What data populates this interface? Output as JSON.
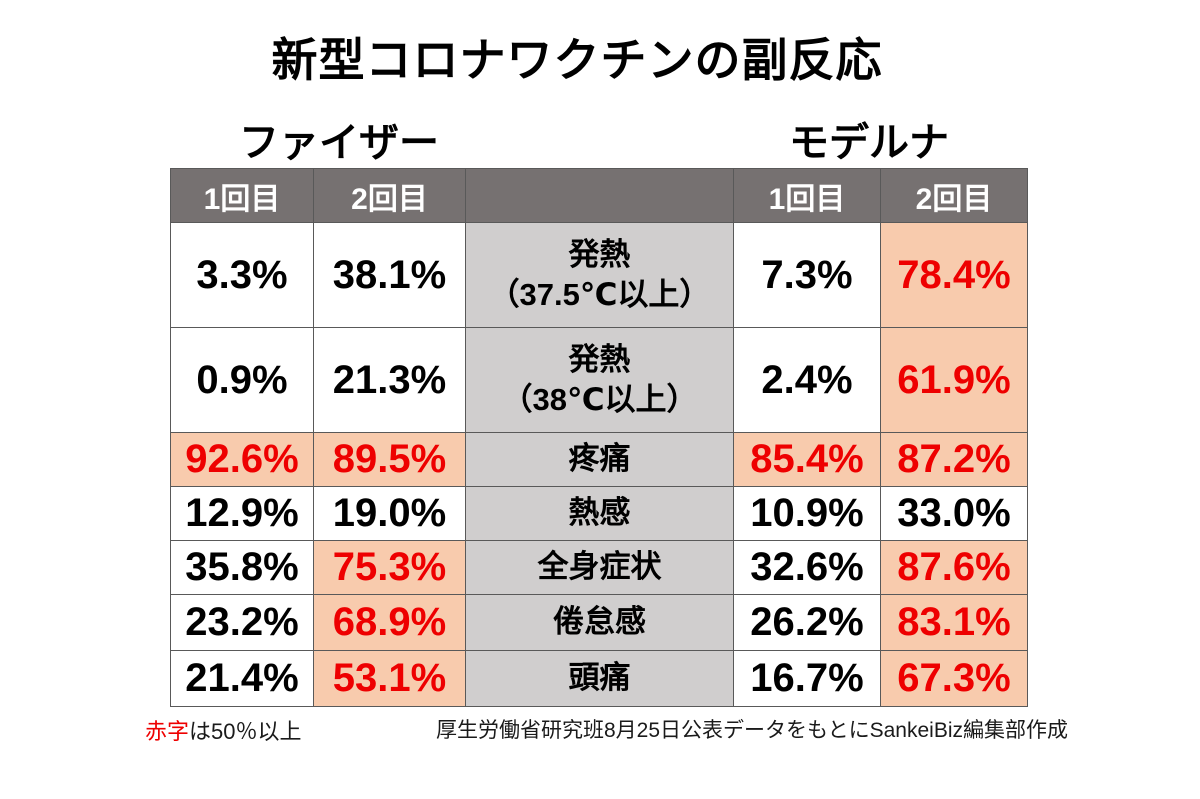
{
  "title": "新型コロナワクチンの副反応",
  "vaccine_groups": {
    "pfizer": "ファイザー",
    "moderna": "モデルナ"
  },
  "table": {
    "column_headers": {
      "pfizer_dose1": "1回目",
      "pfizer_dose2": "2回目",
      "symptom": "",
      "moderna_dose1": "1回目",
      "moderna_dose2": "2回目"
    },
    "rows": [
      {
        "symptom": "発熱\n（37.5℃以上）",
        "pfizer_dose1": {
          "value": "3.3%",
          "highlight": false
        },
        "pfizer_dose2": {
          "value": "38.1%",
          "highlight": false
        },
        "moderna_dose1": {
          "value": "7.3%",
          "highlight": false
        },
        "moderna_dose2": {
          "value": "78.4%",
          "highlight": true
        }
      },
      {
        "symptom": "発熱\n（38℃以上）",
        "pfizer_dose1": {
          "value": "0.9%",
          "highlight": false
        },
        "pfizer_dose2": {
          "value": "21.3%",
          "highlight": false
        },
        "moderna_dose1": {
          "value": "2.4%",
          "highlight": false
        },
        "moderna_dose2": {
          "value": "61.9%",
          "highlight": true
        }
      },
      {
        "symptom": "疼痛",
        "pfizer_dose1": {
          "value": "92.6%",
          "highlight": true
        },
        "pfizer_dose2": {
          "value": "89.5%",
          "highlight": true
        },
        "moderna_dose1": {
          "value": "85.4%",
          "highlight": true
        },
        "moderna_dose2": {
          "value": "87.2%",
          "highlight": true
        }
      },
      {
        "symptom": "熱感",
        "pfizer_dose1": {
          "value": "12.9%",
          "highlight": false
        },
        "pfizer_dose2": {
          "value": "19.0%",
          "highlight": false
        },
        "moderna_dose1": {
          "value": "10.9%",
          "highlight": false
        },
        "moderna_dose2": {
          "value": "33.0%",
          "highlight": false
        }
      },
      {
        "symptom": "全身症状",
        "pfizer_dose1": {
          "value": "35.8%",
          "highlight": false
        },
        "pfizer_dose2": {
          "value": "75.3%",
          "highlight": true
        },
        "moderna_dose1": {
          "value": "32.6%",
          "highlight": false
        },
        "moderna_dose2": {
          "value": "87.6%",
          "highlight": true
        }
      },
      {
        "symptom": "倦怠感",
        "pfizer_dose1": {
          "value": "23.2%",
          "highlight": false
        },
        "pfizer_dose2": {
          "value": "68.9%",
          "highlight": true
        },
        "moderna_dose1": {
          "value": "26.2%",
          "highlight": false
        },
        "moderna_dose2": {
          "value": "83.1%",
          "highlight": true
        }
      },
      {
        "symptom": "頭痛",
        "pfizer_dose1": {
          "value": "21.4%",
          "highlight": false
        },
        "pfizer_dose2": {
          "value": "53.1%",
          "highlight": true
        },
        "moderna_dose1": {
          "value": "16.7%",
          "highlight": false
        },
        "moderna_dose2": {
          "value": "67.3%",
          "highlight": true
        }
      }
    ]
  },
  "footer": {
    "legend_red_term": "赤字",
    "legend_rest": "は50％以上",
    "source": "厚生労働省研究班8月25日公表データをもとにSankeiBiz編集部作成"
  },
  "colors": {
    "header-bg": "#767171",
    "symptom-bg": "#d0cece",
    "highlight-bg": "#f8cbad",
    "red-text": "#ee0000",
    "border": "#595959"
  },
  "chart_data": {
    "type": "table",
    "title": "新型コロナワクチンの副反応",
    "unit": "%",
    "categories": [
      "発熱（37.5℃以上）",
      "発熱（38℃以上）",
      "疼痛",
      "熱感",
      "全身症状",
      "倦怠感",
      "頭痛"
    ],
    "series": [
      {
        "name": "ファイザー 1回目",
        "values": [
          3.3,
          0.9,
          92.6,
          12.9,
          35.8,
          23.2,
          21.4
        ]
      },
      {
        "name": "ファイザー 2回目",
        "values": [
          38.1,
          21.3,
          89.5,
          19.0,
          75.3,
          68.9,
          53.1
        ]
      },
      {
        "name": "モデルナ 1回目",
        "values": [
          7.3,
          2.4,
          85.4,
          10.9,
          32.6,
          26.2,
          16.7
        ]
      },
      {
        "name": "モデルナ 2回目",
        "values": [
          78.4,
          61.9,
          87.2,
          33.0,
          87.6,
          83.1,
          67.3
        ]
      }
    ],
    "highlight_threshold": 50,
    "highlight_note": "赤字は50％以上"
  }
}
